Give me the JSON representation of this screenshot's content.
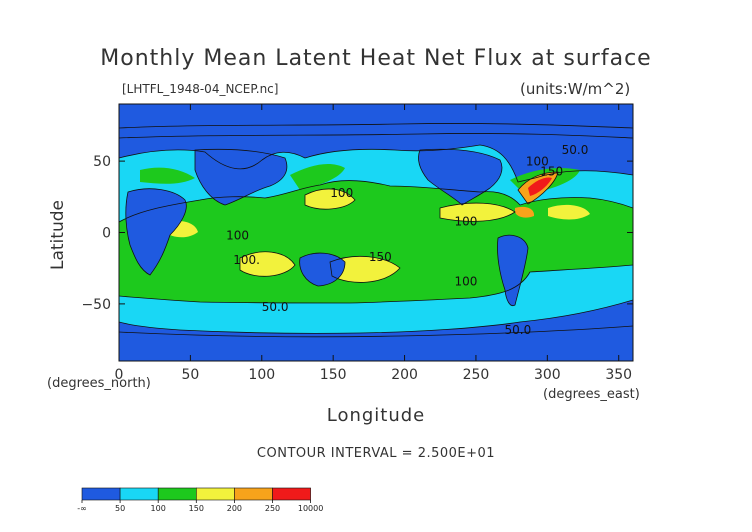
{
  "title": "Monthly Mean Latent Heat Net Flux at surface",
  "file_label": "[LHTFL_1948-04_NCEP.nc]",
  "units_label": "(units:W/m^2)",
  "ylabel": "Latitude",
  "xlabel": "Longitude",
  "x_units": "(degrees_east)",
  "y_units": "(degrees_north)",
  "contour_interval": "CONTOUR INTERVAL = 2.500E+01",
  "x_ticks": [
    "0",
    "50",
    "100",
    "150",
    "200",
    "250",
    "300",
    "350"
  ],
  "y_ticks": [
    "50",
    "0",
    "−50"
  ],
  "contour_labels": [
    "50.0",
    "100",
    "100",
    "100",
    "100.",
    "100",
    "150",
    "100",
    "50.0",
    "50.0",
    "150"
  ],
  "colorbar": {
    "labels": [
      "-∞",
      "50",
      "100",
      "150",
      "200",
      "250",
      "10000"
    ],
    "colors": [
      "#1f5ae0",
      "#19d7f5",
      "#1dc91d",
      "#f2f23c",
      "#f7a31b",
      "#f01a1a"
    ]
  },
  "colors": {
    "low": "#1f5ae0",
    "mid_low": "#19d7f5",
    "mid": "#1dc91d",
    "high": "#f2f23c",
    "very_high": "#f7a31b",
    "extreme": "#f01a1a"
  }
}
